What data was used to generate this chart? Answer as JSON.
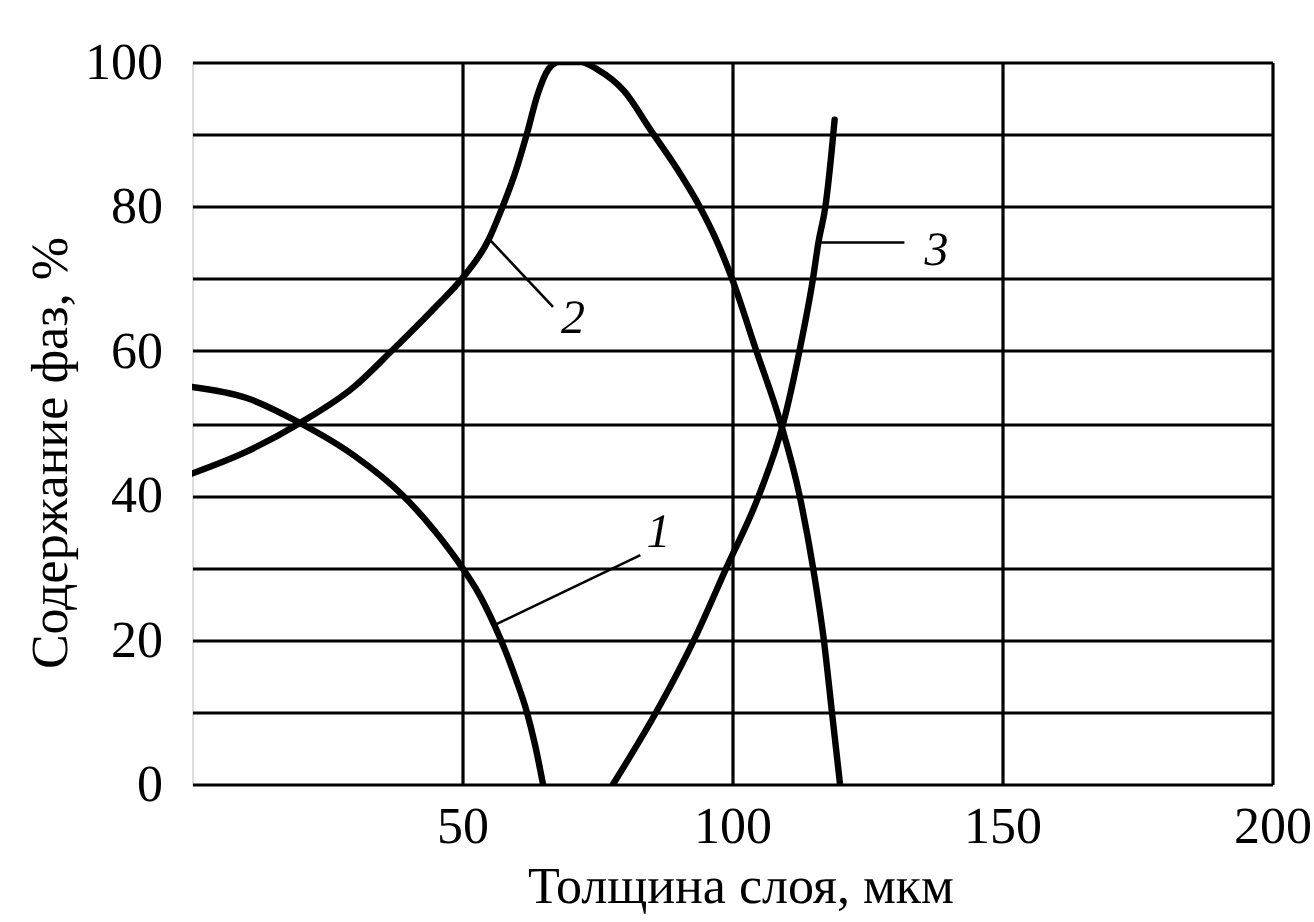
{
  "chart_data": {
    "type": "line",
    "xlabel": "Толщина слоя, мкм",
    "ylabel": "Содержание фаз, %",
    "xlim": [
      0,
      200
    ],
    "ylim": [
      0,
      100
    ],
    "xticks": [
      50,
      100,
      150,
      200
    ],
    "yticks": [
      0,
      {
        "value": 10,
        "label": null
      },
      20,
      {
        "value": 30,
        "label": null
      },
      40,
      {
        "value": 50,
        "label": null
      },
      60,
      {
        "value": 70,
        "label": null
      },
      80,
      {
        "value": 90,
        "label": null
      },
      100
    ],
    "grid": true,
    "line_style": "solid",
    "series": [
      {
        "name": "1",
        "color": "#000000",
        "x": [
          0,
          10,
          20,
          30,
          39,
          45,
          50,
          53,
          56,
          58,
          60,
          62,
          63.5,
          65
        ],
        "values": [
          55,
          53.5,
          50,
          45.5,
          40,
          35,
          30,
          26.5,
          22,
          18.5,
          14.5,
          10,
          5.5,
          0
        ]
      },
      {
        "name": "2",
        "color": "#000000",
        "x": [
          0,
          10,
          20,
          30,
          37,
          45,
          50,
          55,
          57,
          60,
          62,
          64,
          66,
          68,
          72,
          75,
          80,
          85,
          90,
          94,
          97,
          100,
          104.5,
          109,
          112.5,
          115,
          117,
          118.5,
          120
        ],
        "values": [
          43,
          46,
          50,
          55,
          60,
          66,
          70,
          75.5,
          79,
          85,
          90,
          95.5,
          99,
          100,
          100,
          99,
          96,
          90.5,
          85,
          80,
          75.5,
          70,
          60,
          50,
          40,
          30,
          20,
          10,
          0
        ]
      },
      {
        "name": "3",
        "color": "#000000",
        "x": [
          78,
          86,
          93,
          99,
          105,
          109.5,
          112.5,
          115,
          116,
          117.3,
          118.5,
          119
        ],
        "values": [
          0,
          10,
          20,
          30,
          40,
          50,
          60,
          70,
          75,
          80,
          88,
          92
        ]
      }
    ]
  }
}
